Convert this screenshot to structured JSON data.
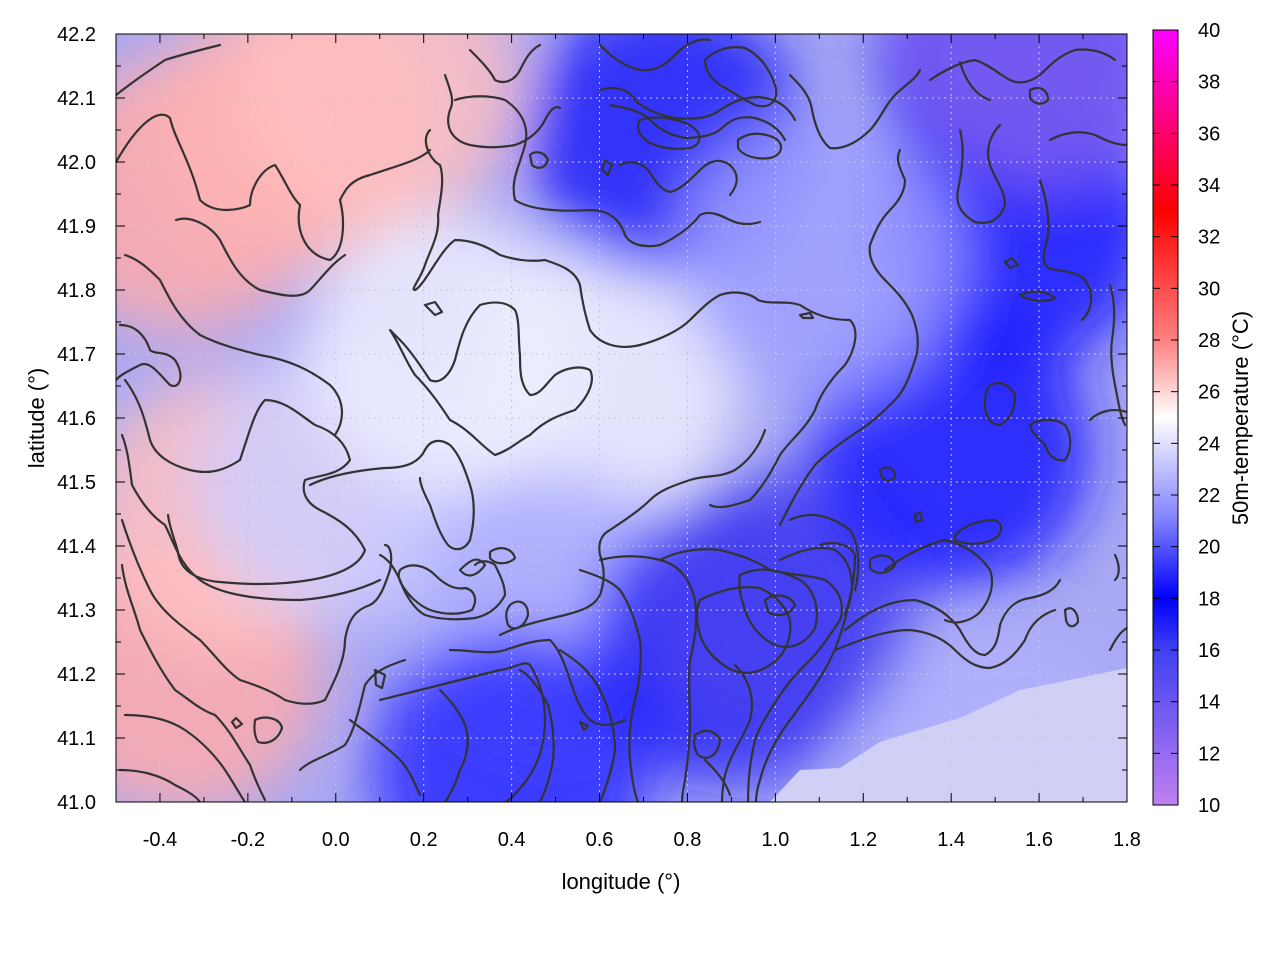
{
  "chart_data": {
    "type": "heatmap",
    "title": "",
    "xlabel": "longitude (°)",
    "ylabel": "latitude (°)",
    "colorbar_label": "50m-temperature (°C)",
    "xlim": [
      -0.5,
      1.8
    ],
    "ylim": [
      41.0,
      42.2
    ],
    "x_ticks": [
      -0.4,
      -0.2,
      0.0,
      0.2,
      0.4,
      0.6,
      0.8,
      1.0,
      1.2,
      1.4,
      1.6,
      1.8
    ],
    "x_tick_labels": [
      "-0.4",
      "-0.2",
      "0.0",
      "0.2",
      "0.4",
      "0.6",
      "0.8",
      "1.0",
      "1.2",
      "1.4",
      "1.6",
      "1.8"
    ],
    "y_ticks": [
      41.0,
      41.1,
      41.2,
      41.3,
      41.4,
      41.5,
      41.6,
      41.7,
      41.8,
      41.9,
      42.0,
      42.1,
      42.2
    ],
    "y_tick_labels": [
      "41.0",
      "41.1",
      "41.2",
      "41.3",
      "41.4",
      "41.5",
      "41.6",
      "41.7",
      "41.8",
      "41.9",
      "42.0",
      "42.1",
      "42.2"
    ],
    "color_range": [
      10,
      40
    ],
    "colorbar_ticks": [
      10,
      12,
      14,
      16,
      18,
      20,
      22,
      24,
      26,
      28,
      30,
      32,
      34,
      36,
      38,
      40
    ],
    "colorbar_tick_labels": [
      "10",
      "12",
      "14",
      "16",
      "18",
      "20",
      "22",
      "24",
      "26",
      "28",
      "30",
      "32",
      "34",
      "36",
      "38",
      "40"
    ],
    "colormap": [
      {
        "value": 10,
        "color": "#c080f0"
      },
      {
        "value": 16,
        "color": "#4040f0"
      },
      {
        "value": 18,
        "color": "#0000ff"
      },
      {
        "value": 21,
        "color": "#8080ff"
      },
      {
        "value": 25,
        "color": "#ffffff"
      },
      {
        "value": 28,
        "color": "#ff8080"
      },
      {
        "value": 33,
        "color": "#ff0000"
      },
      {
        "value": 40,
        "color": "#ff00ff"
      }
    ],
    "grid": true,
    "legend": "none",
    "contours": true,
    "sea_region_value": 22.5,
    "field_samples": [
      {
        "x": -0.35,
        "y": 41.95,
        "value": 27
      },
      {
        "x": -0.1,
        "y": 42.05,
        "value": 26.8
      },
      {
        "x": 0.1,
        "y": 42.12,
        "value": 26.5
      },
      {
        "x": -0.35,
        "y": 41.2,
        "value": 27
      },
      {
        "x": -0.25,
        "y": 41.45,
        "value": 26.5
      },
      {
        "x": 0.0,
        "y": 41.5,
        "value": 23.5
      },
      {
        "x": 0.25,
        "y": 41.7,
        "value": 24.5
      },
      {
        "x": 0.6,
        "y": 41.65,
        "value": 24.5
      },
      {
        "x": 0.5,
        "y": 41.3,
        "value": 22.5
      },
      {
        "x": 0.4,
        "y": 41.05,
        "value": 19
      },
      {
        "x": 0.9,
        "y": 41.25,
        "value": 17.5
      },
      {
        "x": 1.0,
        "y": 41.3,
        "value": 15.5
      },
      {
        "x": 1.4,
        "y": 41.55,
        "value": 18.5
      },
      {
        "x": 1.55,
        "y": 41.9,
        "value": 18.5
      },
      {
        "x": 1.55,
        "y": 42.15,
        "value": 17
      },
      {
        "x": 1.6,
        "y": 42.18,
        "value": 13
      },
      {
        "x": 0.75,
        "y": 42.04,
        "value": 17
      },
      {
        "x": 1.1,
        "y": 41.85,
        "value": 22
      },
      {
        "x": 1.5,
        "y": 41.05,
        "value": 22.5
      }
    ]
  }
}
